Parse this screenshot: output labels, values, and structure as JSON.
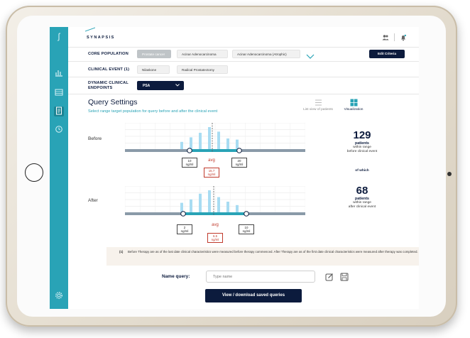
{
  "app": {
    "logo": "SYNAPSIS"
  },
  "rows": {
    "core_population": {
      "label": "CORE POPULATION",
      "chips": [
        "Prostate cancer",
        "Acinar Adenocarcinoma",
        "Acinar Adenocarcinoma (Atrophic)"
      ],
      "edit_label": "Edit Criteria"
    },
    "clinical_event": {
      "label": "CLINICAL EVENT (1)",
      "chips": [
        "Nilaskone",
        "Radical Prostatectomy"
      ]
    },
    "endpoints": {
      "label_line1": "DYNAMIC CLINICAL",
      "label_line2": "ENDPOINTS",
      "selected": "PSA"
    }
  },
  "query": {
    "title": "Query Settings",
    "subtitle": "Select range target population for query before and after the clinical event",
    "view_list": "List view of patients",
    "view_viz": "Visualization"
  },
  "before": {
    "label": "Before",
    "min": "10",
    "max": "20",
    "avg": "15.7",
    "unit": "ng/ml",
    "avg_label": "avg",
    "count": "129",
    "count_label": "patients",
    "count_sub1": "within range",
    "count_sub2": "before clinical event",
    "bars": [
      0.35,
      0.55,
      0.75,
      1.0,
      0.8,
      0.5,
      0.45
    ]
  },
  "of_which": "of which",
  "after": {
    "label": "After",
    "min": "2",
    "max": "10",
    "avg": "6.5",
    "unit": "ng/ml",
    "avg_label": "avg",
    "count": "68",
    "count_label": "patients",
    "count_sub1": "within range",
    "count_sub2": "after clinical event",
    "bars": [
      0.45,
      0.6,
      0.85,
      1.0,
      0.7,
      0.5,
      0.35
    ]
  },
  "note": {
    "mark": "(1)",
    "text": "Before Therapy are as of the last date clinical characteristics were measured before therapy commenced. After Therapy are as of the first date clinical characteristics were measured after therapy was completed."
  },
  "name_query": {
    "label": "Name query:",
    "placeholder": "Type name"
  },
  "view_saved": "View / download saved queries",
  "colors": {
    "accent": "#29a3b6",
    "navy": "#0c1b3d",
    "avg_red": "#c0392b",
    "bar": "#a8dcf2"
  }
}
